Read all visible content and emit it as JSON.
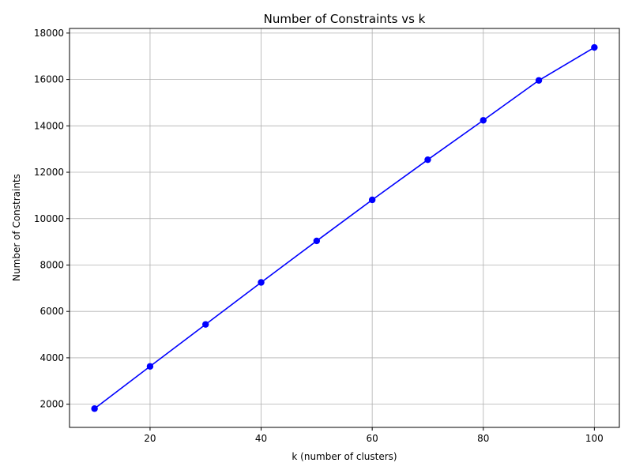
{
  "chart_data": {
    "type": "line",
    "title": "Number of Constraints vs k",
    "xlabel": "k (number of clusters)",
    "ylabel": "Number of Constraints",
    "x": [
      10,
      20,
      30,
      40,
      50,
      60,
      70,
      80,
      90,
      100
    ],
    "series": [
      {
        "values": [
          1810,
          3630,
          5440,
          7250,
          9040,
          10810,
          12540,
          14240,
          15960,
          17380
        ],
        "color": "#0000ff",
        "marker": "circle"
      }
    ],
    "xlim": [
      5.5,
      104.5
    ],
    "ylim": [
      1000,
      18200
    ],
    "xticks": [
      20,
      40,
      60,
      80,
      100
    ],
    "yticks": [
      2000,
      4000,
      6000,
      8000,
      10000,
      12000,
      14000,
      16000,
      18000
    ],
    "grid": true,
    "legend": "none"
  }
}
